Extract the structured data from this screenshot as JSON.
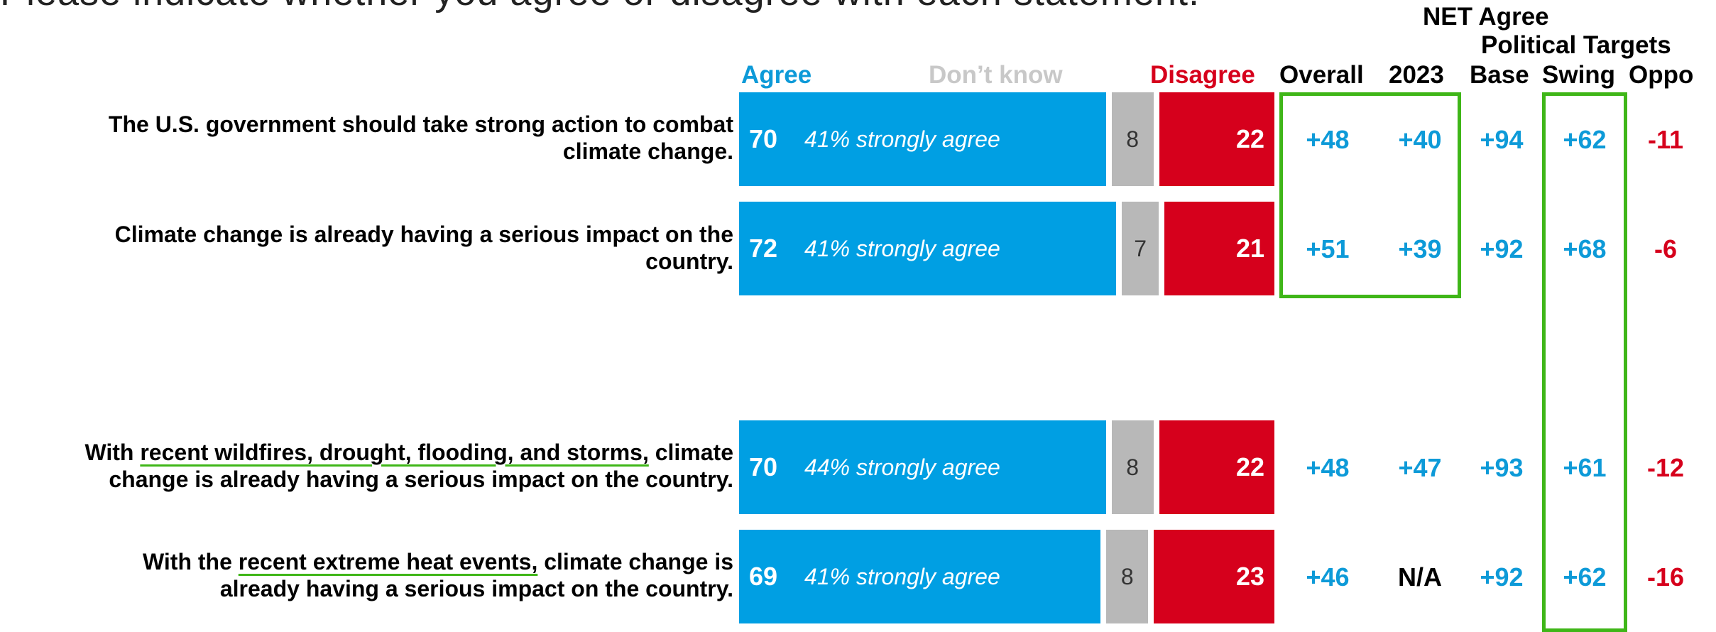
{
  "title": "Please indicate whether you agree or disagree with each statement.",
  "colors": {
    "agree": "#009fe3",
    "dont_know": "#b8b8b8",
    "disagree": "#d6001c",
    "net_positive": "#0d9ad8",
    "net_negative": "#d6001c",
    "highlight": "#3fb618"
  },
  "headers": {
    "agree": "Agree",
    "dont_know": "Don’t know",
    "disagree": "Disagree",
    "net_agree": "NET Agree",
    "political_targets": "Political Targets",
    "overall": "Overall",
    "year": "2023",
    "base": "Base",
    "swing": "Swing",
    "oppo": "Oppo"
  },
  "chart_data": {
    "type": "bar",
    "stacked": true,
    "orientation": "horizontal",
    "categories": [
      "The U.S. government should take strong action to combat climate change.",
      "Climate change is already having a serious impact on the country.",
      "With recent wildfires, drought, flooding, and storms, climate change is already having a serious impact on the country.",
      "With the recent extreme heat events, climate change is already having a serious impact on the country."
    ],
    "series": [
      {
        "name": "Agree",
        "values": [
          70,
          72,
          70,
          69
        ]
      },
      {
        "name": "Don’t know",
        "values": [
          8,
          7,
          8,
          8
        ]
      },
      {
        "name": "Disagree",
        "values": [
          22,
          21,
          22,
          23
        ]
      }
    ],
    "strongly_agree_notes": [
      "41% strongly agree",
      "41% strongly agree",
      "44% strongly agree",
      "41% strongly agree"
    ],
    "net_agree": {
      "Overall": [
        "+48",
        "+51",
        "+48",
        "+46"
      ],
      "2023": [
        "+40",
        "+39",
        "+47",
        "N/A"
      ],
      "Base": [
        "+94",
        "+92",
        "+93",
        "+92"
      ],
      "Swing": [
        "+62",
        "+68",
        "+61",
        "+62"
      ],
      "Oppo": [
        "-11",
        "-6",
        "-12",
        "-16"
      ]
    }
  },
  "rows": [
    {
      "line1": "The U.S. government should take strong action to combat",
      "line2": "climate change.",
      "pre": "",
      "ul": "",
      "post": ""
    },
    {
      "line1": "Climate change is already having a serious impact on the",
      "line2": "country.",
      "pre": "",
      "ul": "",
      "post": ""
    },
    {
      "line1": "",
      "line2": "change is already having a serious impact on the country.",
      "pre": "With ",
      "ul": "recent wildfires, drought, flooding, and storms,",
      "post": " climate"
    },
    {
      "line1": "",
      "line2": "already having a serious impact on the country.",
      "pre": "With the ",
      "ul": "recent extreme heat events,",
      "post": " climate change is"
    }
  ]
}
